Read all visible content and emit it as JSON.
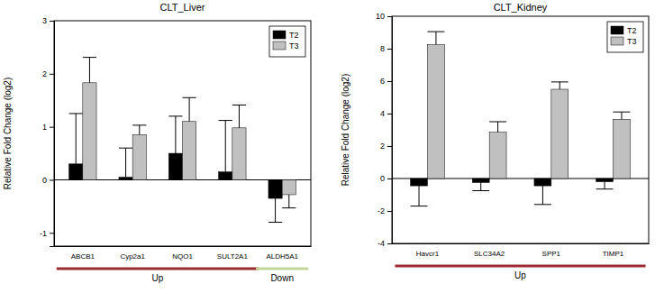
{
  "chart_data": [
    {
      "type": "bar",
      "title": "CLT_Liver",
      "y_label": "Relative Fold Change (log2)",
      "categories": [
        "ABCB1",
        "Cyp2a1",
        "NQO1",
        "SULT2A1",
        "ALDH5A1"
      ],
      "series": [
        {
          "name": "T2",
          "color": "#000000",
          "values": [
            0.3,
            0.05,
            0.5,
            0.15,
            -0.35
          ],
          "errors": [
            0.95,
            0.55,
            0.7,
            0.97,
            0.45
          ]
        },
        {
          "name": "T3",
          "color": "#c0c0c0",
          "values": [
            1.83,
            0.85,
            1.1,
            0.98,
            -0.28
          ],
          "errors": [
            0.48,
            0.18,
            0.45,
            0.43,
            0.25
          ]
        }
      ],
      "ylim": [
        -1.25,
        3
      ],
      "yticks": [
        -1,
        0,
        1,
        2,
        3
      ],
      "legend": "top-right",
      "annotations": [
        {
          "text": "Up",
          "color": "#9b2d30",
          "from": "ABCB1",
          "to": "SULT2A1"
        },
        {
          "text": "Down",
          "color": "#c3d69b",
          "from": "ALDH5A1",
          "to": "ALDH5A1"
        }
      ]
    },
    {
      "type": "bar",
      "title": "CLT_Kidney",
      "y_label": "Relative Fold Change (log2)",
      "categories": [
        "Havcr1",
        "SLC34A2",
        "SPP1",
        "TIMP1"
      ],
      "series": [
        {
          "name": "T2",
          "color": "#000000",
          "values": [
            -0.45,
            -0.25,
            -0.45,
            -0.2
          ],
          "errors": [
            1.25,
            0.5,
            1.15,
            0.45
          ]
        },
        {
          "name": "T3",
          "color": "#c0c0c0",
          "values": [
            8.25,
            2.85,
            5.5,
            3.65
          ],
          "errors": [
            0.8,
            0.65,
            0.45,
            0.45
          ]
        }
      ],
      "ylim": [
        -4,
        10
      ],
      "yticks": [
        -4,
        -2,
        0,
        2,
        4,
        6,
        8,
        10
      ],
      "legend": "top-right",
      "annotations": [
        {
          "text": "Up",
          "color": "#9b2d30",
          "from": "Havcr1",
          "to": "TIMP1"
        }
      ]
    }
  ]
}
